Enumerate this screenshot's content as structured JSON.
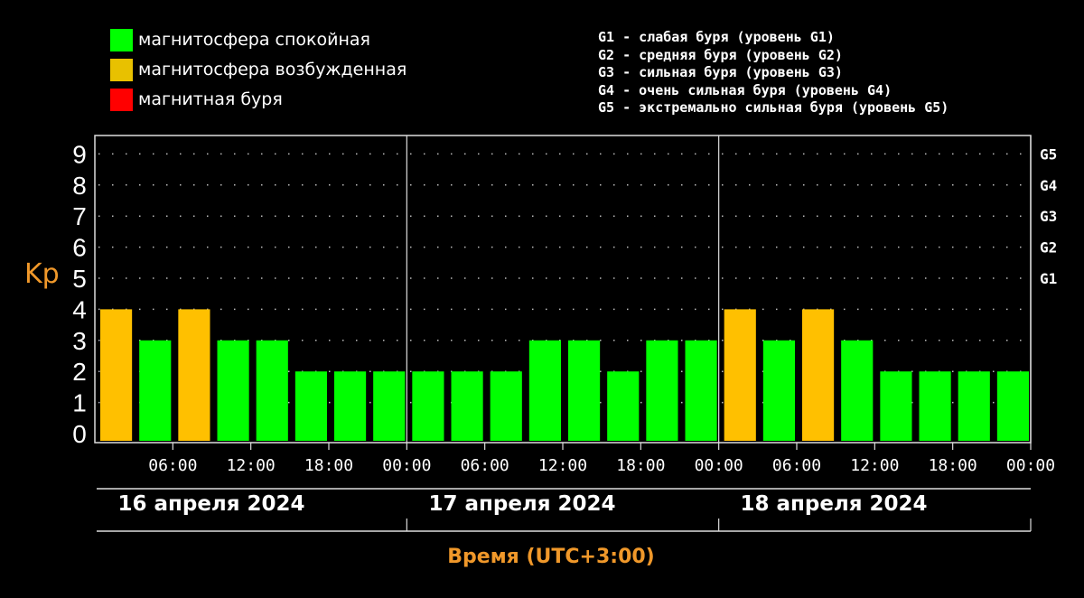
{
  "legend": {
    "items": [
      {
        "label": "магнитосфера спокойная",
        "color": "#00ff00"
      },
      {
        "label": "магнитосфера возбужденная",
        "color": "#ffc000"
      },
      {
        "label": "магнитная буря",
        "color": "#ff0000"
      }
    ]
  },
  "storm_levels": [
    "G1 - слабая буря (уровень G1)",
    "G2 - средняя буря (уровень G2)",
    "G3 - сильная буря (уровень G3)",
    "G4 - очень сильная буря (уровень G4)",
    "G5 - экстремально сильная буря (уровень G5)"
  ],
  "chart_data": {
    "type": "bar",
    "ylabel": "Kp",
    "xlabel": "Время (UTC+3:00)",
    "ylim": [
      0,
      9
    ],
    "y_ticks": [
      "0",
      "1",
      "2",
      "3",
      "4",
      "5",
      "6",
      "7",
      "8",
      "9"
    ],
    "g_ticks": [
      {
        "value": 5,
        "label": "G1"
      },
      {
        "value": 6,
        "label": "G2"
      },
      {
        "value": 7,
        "label": "G3"
      },
      {
        "value": 8,
        "label": "G4"
      },
      {
        "value": 9,
        "label": "G5"
      }
    ],
    "x_ticks": [
      "06:00",
      "12:00",
      "18:00",
      "00:00",
      "06:00",
      "12:00",
      "18:00",
      "00:00",
      "06:00",
      "12:00",
      "18:00",
      "00:00"
    ],
    "days": [
      "16 апреля 2024",
      "17 апреля 2024",
      "18 апреля 2024"
    ],
    "values": [
      4,
      3,
      4,
      3,
      3,
      2,
      2,
      2,
      2,
      2,
      2,
      3,
      3,
      2,
      3,
      3,
      4,
      3,
      4,
      3,
      2,
      2,
      2,
      2
    ],
    "colors": {
      "quiet": "#00ff00",
      "disturbed": "#ffc000",
      "storm": "#ff0000"
    },
    "grid": true
  }
}
